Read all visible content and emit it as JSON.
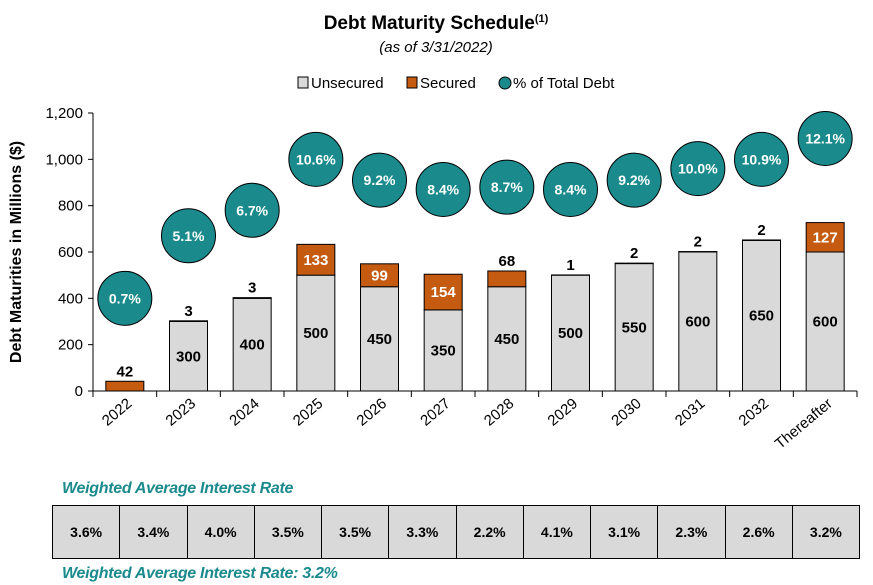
{
  "chart_data": {
    "type": "bar",
    "title": "Debt Maturity Schedule",
    "title_superscript": "(1)",
    "subtitle": "(as of 3/31/2022)",
    "ylabel": "Debt Maturities in Millions ($)",
    "xlabel": "",
    "ylim": [
      0,
      1200
    ],
    "yticks": [
      0,
      200,
      400,
      600,
      800,
      1000,
      1200
    ],
    "ytick_labels": [
      "0",
      "200",
      "400",
      "600",
      "800",
      "1,000",
      "1,200"
    ],
    "stacked": true,
    "legend": [
      "Unsecured",
      "Secured",
      "% of Total Debt"
    ],
    "legend_position": "top",
    "categories": [
      "2022",
      "2023",
      "2024",
      "2025",
      "2026",
      "2027",
      "2028",
      "2029",
      "2030",
      "2031",
      "2032",
      "Thereafter"
    ],
    "series": [
      {
        "name": "Unsecured",
        "color": "#d9d9d9",
        "values": [
          0,
          300,
          400,
          500,
          450,
          350,
          450,
          500,
          550,
          600,
          650,
          600
        ]
      },
      {
        "name": "Secured",
        "color": "#c55a11",
        "values": [
          42,
          3,
          3,
          133,
          99,
          154,
          68,
          1,
          2,
          2,
          2,
          127
        ]
      }
    ],
    "pct_total_debt": {
      "name": "% of Total Debt",
      "color": "#1a8a8c",
      "labels": [
        "0.7%",
        "5.1%",
        "6.7%",
        "10.6%",
        "9.2%",
        "8.4%",
        "8.7%",
        "8.4%",
        "9.2%",
        "10.0%",
        "10.9%",
        "12.1%"
      ],
      "positions": [
        400,
        670,
        780,
        1000,
        910,
        870,
        880,
        870,
        910,
        960,
        1000,
        1090
      ]
    }
  },
  "weighted_avg": {
    "title": "Weighted Average Interest Rate",
    "rates": [
      "3.6%",
      "3.4%",
      "4.0%",
      "3.5%",
      "3.5%",
      "3.3%",
      "2.2%",
      "4.1%",
      "3.1%",
      "2.3%",
      "2.6%",
      "3.2%"
    ],
    "summary": "Weighted Average Interest Rate: 3.2%"
  }
}
